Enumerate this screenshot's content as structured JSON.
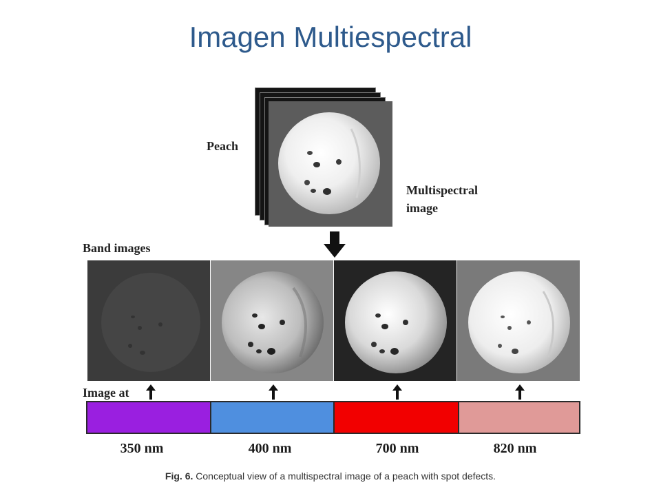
{
  "title": "Imagen Multiespectral",
  "labels": {
    "peach": "Peach",
    "multispectral_line1": "Multispectral",
    "multispectral_line2": "image",
    "band_images": "Band images",
    "image_at": "Image at"
  },
  "bands": [
    {
      "wavelength": "350 nm",
      "color": "#9a1fe0"
    },
    {
      "wavelength": "400 nm",
      "color": "#4f8fdf"
    },
    {
      "wavelength": "700 nm",
      "color": "#f20000"
    },
    {
      "wavelength": "820 nm",
      "color": "#e09a98"
    }
  ],
  "caption": {
    "label": "Fig. 6.",
    "text": " Conceptual view of a multispectral image of a peach with spot defects."
  }
}
